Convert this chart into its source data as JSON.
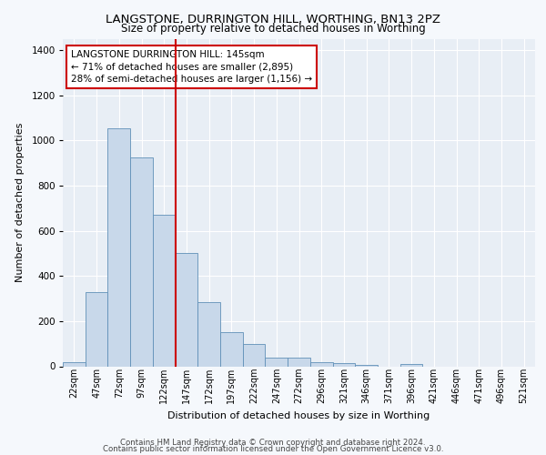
{
  "title1": "LANGSTONE, DURRINGTON HILL, WORTHING, BN13 2PZ",
  "title2": "Size of property relative to detached houses in Worthing",
  "xlabel": "Distribution of detached houses by size in Worthing",
  "ylabel": "Number of detached properties",
  "footer1": "Contains HM Land Registry data © Crown copyright and database right 2024.",
  "footer2": "Contains public sector information licensed under the Open Government Licence v3.0.",
  "annotation_line1": "LANGSTONE DURRINGTON HILL: 145sqm",
  "annotation_line2": "← 71% of detached houses are smaller (2,895)",
  "annotation_line3": "28% of semi-detached houses are larger (1,156) →",
  "bar_color": "#c8d8ea",
  "bar_edge_color": "#6090b8",
  "highlight_line_color": "#cc0000",
  "categories": [
    "22sqm",
    "47sqm",
    "72sqm",
    "97sqm",
    "122sqm",
    "147sqm",
    "172sqm",
    "197sqm",
    "222sqm",
    "247sqm",
    "272sqm",
    "296sqm",
    "321sqm",
    "346sqm",
    "371sqm",
    "396sqm",
    "421sqm",
    "446sqm",
    "471sqm",
    "496sqm",
    "521sqm"
  ],
  "values": [
    20,
    330,
    1055,
    925,
    670,
    500,
    285,
    150,
    100,
    40,
    40,
    20,
    15,
    8,
    0,
    12,
    0,
    0,
    0,
    0,
    0
  ],
  "highlight_index": 5,
  "ylim": [
    0,
    1450
  ],
  "yticks": [
    0,
    200,
    400,
    600,
    800,
    1000,
    1200,
    1400
  ],
  "background_color": "#f5f8fc",
  "plot_bg_color": "#e8eef5",
  "title_fontsize": 9.5,
  "subtitle_fontsize": 8.5,
  "axis_label_fontsize": 8.0,
  "tick_fontsize": 7.0,
  "footer_fontsize": 6.2,
  "annot_fontsize": 7.5
}
